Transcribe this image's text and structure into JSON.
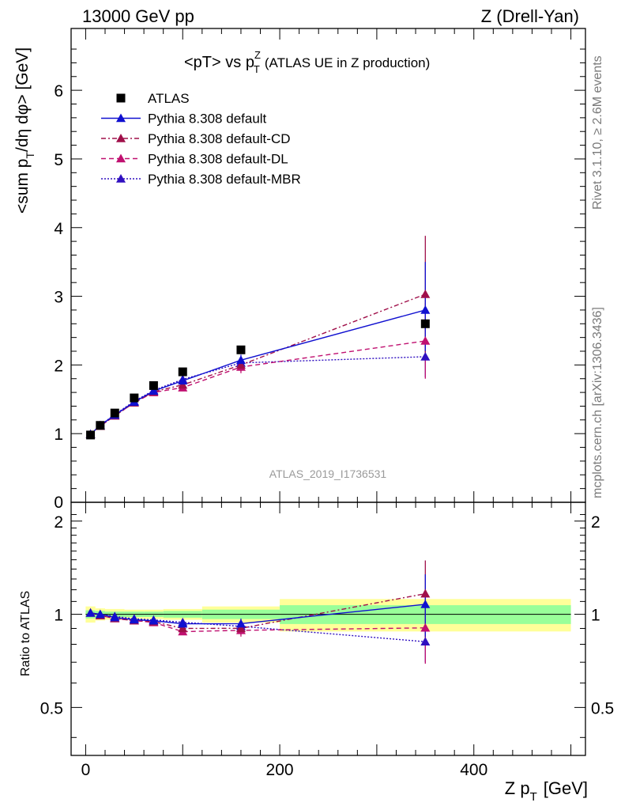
{
  "header": {
    "left": "13000 GeV pp",
    "right": "Z (Drell-Yan)"
  },
  "side_labels": {
    "rivet": "Rivet 3.1.10, ≥ 2.6M events",
    "mcplots": "mcplots.cern.ch [arXiv:1306.3436]"
  },
  "chart_data": {
    "type": "line",
    "title_main": "<pT> vs p",
    "title_sup": "Z",
    "title_sub": "T",
    "title_extra": "(ATLAS UE in Z production)",
    "watermark": "ATLAS_2019_I1736531",
    "xlabel_main": "Z p",
    "xlabel_sub": "T",
    "xlabel_unit": "[GeV]",
    "ylabel_pre": "<sum p",
    "ylabel_sub1": "T",
    "ylabel_post": "/dη dφ> [GeV]",
    "ratio_ylabel": "Ratio to ATLAS",
    "xlim": [
      -15,
      515
    ],
    "ylim": [
      0,
      6.9
    ],
    "ratio_ylim": [
      0.35,
      2.3
    ],
    "x_ticks": [
      0,
      200,
      400
    ],
    "y_ticks": [
      1,
      2,
      3,
      4,
      5,
      6
    ],
    "ratio_ticks": [
      0.5,
      1,
      2
    ],
    "x": [
      5,
      15,
      30,
      50,
      70,
      100,
      160,
      350
    ],
    "band_x_edges": [
      0,
      10,
      20,
      40,
      60,
      80,
      120,
      200,
      500
    ],
    "band_yellow": [
      0.06,
      0.045,
      0.04,
      0.035,
      0.035,
      0.04,
      0.06,
      0.12
    ],
    "band_green": [
      0.03,
      0.025,
      0.02,
      0.02,
      0.02,
      0.025,
      0.035,
      0.07
    ],
    "data": {
      "name": "ATLAS",
      "values": [
        0.98,
        1.12,
        1.3,
        1.52,
        1.7,
        1.9,
        2.22,
        2.6
      ]
    },
    "series": [
      {
        "name": "Pythia 8.308 default",
        "color": "#1010d0",
        "dash": "",
        "values": [
          0.99,
          1.12,
          1.27,
          1.46,
          1.62,
          1.77,
          2.07,
          2.8
        ],
        "err_hi": [
          0.01,
          0.01,
          0.01,
          0.01,
          0.02,
          0.03,
          0.08,
          0.7
        ],
        "err_lo": [
          0.01,
          0.01,
          0.01,
          0.01,
          0.02,
          0.03,
          0.08,
          0.6
        ]
      },
      {
        "name": "Pythia 8.308 default-CD",
        "color": "#a0104a",
        "dash": "6 3 2 3",
        "values": [
          0.99,
          1.11,
          1.26,
          1.45,
          1.61,
          1.71,
          2.0,
          3.03
        ],
        "err_hi": [
          0.01,
          0.01,
          0.01,
          0.01,
          0.02,
          0.04,
          0.09,
          0.85
        ],
        "err_lo": [
          0.01,
          0.01,
          0.01,
          0.01,
          0.02,
          0.04,
          0.09,
          0.85
        ]
      },
      {
        "name": "Pythia 8.308 default-DL",
        "color": "#c01070",
        "dash": "6 4",
        "values": [
          0.99,
          1.11,
          1.26,
          1.45,
          1.6,
          1.67,
          1.97,
          2.35
        ],
        "err_hi": [
          0.01,
          0.01,
          0.01,
          0.01,
          0.02,
          0.04,
          0.09,
          0.55
        ],
        "err_lo": [
          0.01,
          0.01,
          0.01,
          0.01,
          0.02,
          0.04,
          0.09,
          0.55
        ]
      },
      {
        "name": "Pythia 8.308 default-MBR",
        "color": "#3010c0",
        "dash": "2 2",
        "values": [
          0.99,
          1.12,
          1.28,
          1.47,
          1.63,
          1.79,
          2.03,
          2.12
        ],
        "err_hi": [
          0.01,
          0.01,
          0.01,
          0.01,
          0.02,
          0.03,
          0.08,
          0.3
        ],
        "err_lo": [
          0.01,
          0.01,
          0.01,
          0.01,
          0.02,
          0.03,
          0.08,
          0.3
        ]
      }
    ]
  }
}
